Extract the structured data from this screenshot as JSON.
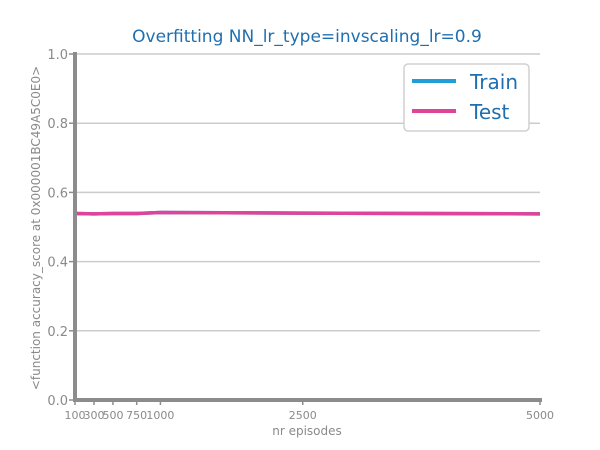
{
  "chart_data": {
    "type": "line",
    "title": "Overfitting NN_lr_type=invscaling_lr=0.9",
    "xlabel": "nr episodes",
    "ylabel": "<function accuracy_score at 0x000001BC49A5C0E0>",
    "x": [
      100,
      300,
      500,
      750,
      1000,
      2500,
      5000
    ],
    "xticks": [
      100,
      300,
      500,
      750,
      1000,
      2500,
      5000
    ],
    "xtick_labels": [
      "100",
      "300",
      "500",
      "750",
      "1000",
      "2500",
      "5000"
    ],
    "yticks": [
      0.0,
      0.2,
      0.4,
      0.6,
      0.8,
      1.0
    ],
    "ytick_labels": [
      "0.0",
      "0.2",
      "0.4",
      "0.6",
      "0.8",
      "1.0"
    ],
    "xlim": [
      100,
      5000
    ],
    "ylim": [
      0.0,
      1.0
    ],
    "grid": "horizontal",
    "legend_position": "top-right",
    "series": [
      {
        "name": "Train",
        "color": "#1f9ed8",
        "values": [
          0.539,
          0.538,
          0.539,
          0.539,
          0.542,
          0.54,
          0.538
        ]
      },
      {
        "name": "Test",
        "color": "#e0449a",
        "values": [
          0.539,
          0.538,
          0.539,
          0.539,
          0.542,
          0.54,
          0.538
        ]
      }
    ]
  }
}
